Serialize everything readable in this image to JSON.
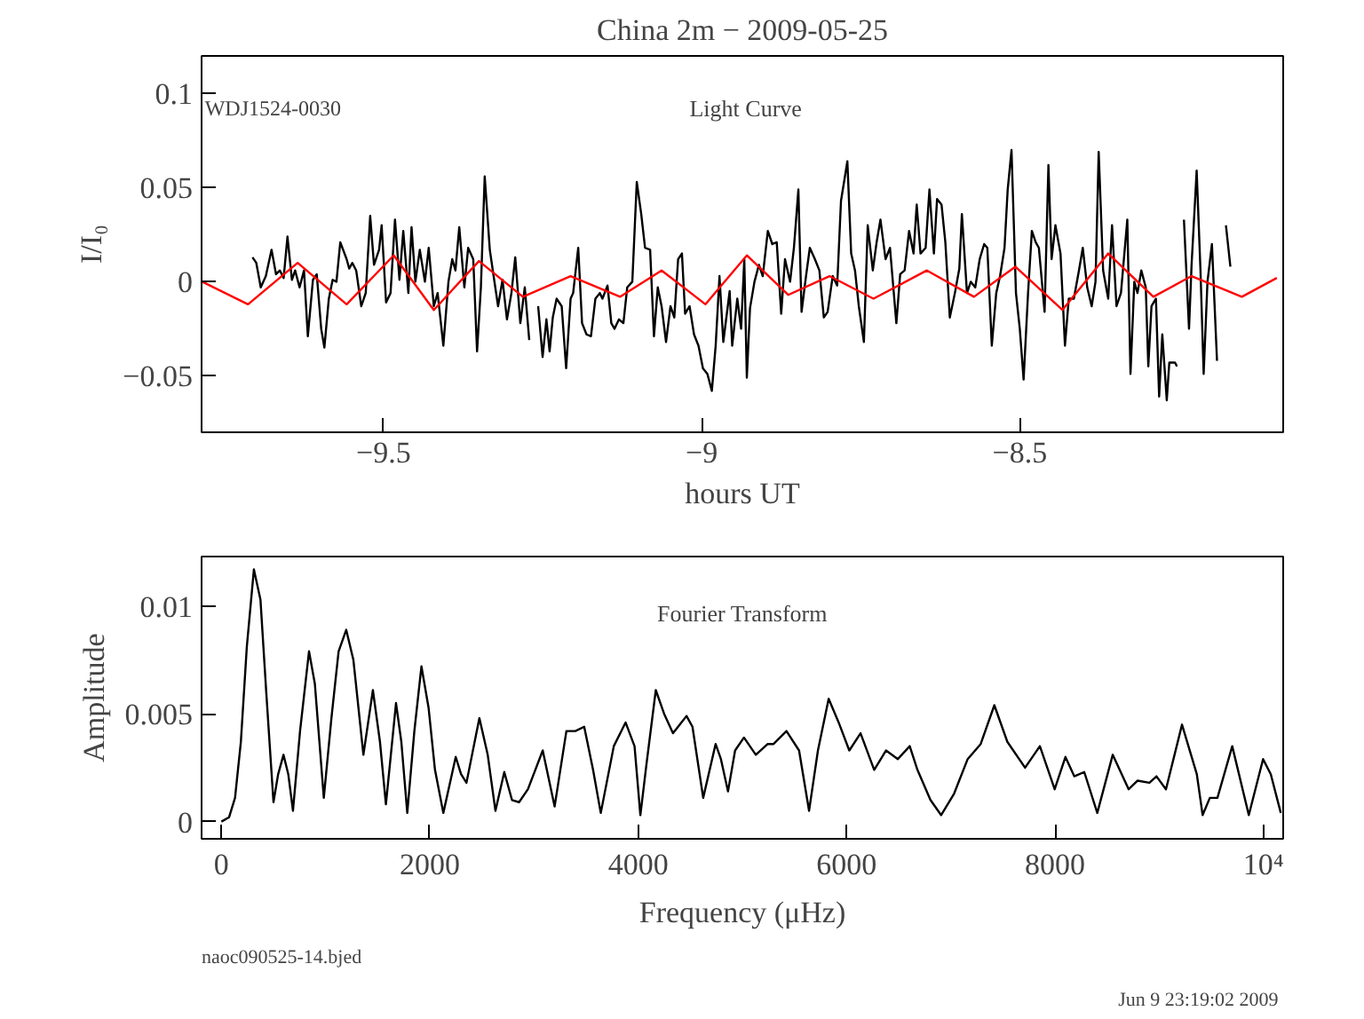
{
  "chart_data": [
    {
      "type": "line",
      "title": "China 2m − 2009-05-25",
      "xlabel": "hours UT",
      "ylabel": "I/I₀",
      "annotations": [
        "WDJ1524-0030",
        "Light Curve"
      ],
      "xlim": [
        -9.786,
        -8.086
      ],
      "ylim": [
        -0.08,
        0.12
      ],
      "xticks": [
        {
          "value": -9.5,
          "label": "−9.5"
        },
        {
          "value": -9,
          "label": "−9"
        },
        {
          "value": -8.5,
          "label": "−8.5"
        }
      ],
      "yticks": [
        {
          "value": -0.05,
          "label": "−0.05"
        },
        0,
        0.05,
        0.1
      ],
      "grid": false,
      "series": [
        {
          "color": "#000000",
          "x": [
            -9.706,
            -9.7,
            -9.693,
            -9.685,
            -9.676,
            -9.669,
            -9.663,
            -9.657,
            -9.651,
            -9.644,
            -9.639,
            -9.632,
            -9.625,
            -9.619,
            -9.611,
            -9.605,
            -9.598,
            -9.593,
            -9.586,
            -9.58,
            -9.574,
            -9.568,
            -9.558,
            -9.554,
            -9.549,
            -9.543,
            -9.535,
            -9.528,
            -9.521,
            -9.515,
            -9.507,
            -9.503,
            -9.496,
            -9.489,
            -9.482,
            -9.475,
            -9.469,
            -9.461,
            -9.456,
            -9.45,
            -9.443,
            -9.435,
            -9.429,
            -9.421,
            -9.415,
            -9.406,
            -9.398,
            -9.392,
            -9.387,
            -9.381,
            -9.373,
            -9.367,
            -9.359,
            -9.353,
            -9.347,
            -9.341,
            -9.333,
            -9.327,
            -9.32,
            -9.313,
            -9.306,
            -9.299,
            -9.293,
            -9.285,
            -9.278,
            -9.271,
            -9.264,
            -9.257,
            -9.25,
            -9.244,
            -9.239,
            -9.234,
            -9.228,
            -9.22,
            -9.213,
            -9.206,
            -9.202,
            -9.194,
            -9.188,
            -9.181,
            -9.174,
            -9.167,
            -9.16,
            -9.156,
            -9.148,
            -9.142,
            -9.137,
            -9.13,
            -9.123,
            -9.117,
            -9.109,
            -9.102,
            -9.095,
            -9.089,
            -9.081,
            -9.075,
            -9.069,
            -9.063,
            -9.056,
            -9.049,
            -9.043,
            -9.037,
            -9.031,
            -9.026,
            -9.019,
            -9.012,
            -9.005,
            -8.998,
            -8.991,
            -8.984,
            -8.978,
            -8.972,
            -8.966,
            -8.956,
            -8.952,
            -8.944,
            -8.938,
            -8.933,
            -8.929,
            -8.924,
            -8.917,
            -8.91,
            -8.904,
            -8.896,
            -8.889,
            -8.882,
            -8.875,
            -8.869,
            -8.861,
            -8.855,
            -8.848,
            -8.843,
            -8.836,
            -8.83,
            -8.822,
            -8.815,
            -8.808,
            -8.802,
            -8.794,
            -8.787,
            -8.781,
            -8.771,
            -8.765,
            -8.759,
            -8.753,
            -8.745,
            -8.739,
            -8.731,
            -8.725,
            -8.719,
            -8.711,
            -8.704,
            -8.694,
            -8.688,
            -8.681,
            -8.674,
            -8.667,
            -8.662,
            -8.656,
            -8.648,
            -8.642,
            -8.635,
            -8.63,
            -8.623,
            -8.617,
            -8.61,
            -8.602,
            -8.595,
            -8.591,
            -8.583,
            -8.577,
            -8.57,
            -8.563,
            -8.556,
            -8.551,
            -8.544,
            -8.537,
            -8.531,
            -8.524,
            -8.519,
            -8.513,
            -8.506,
            -8.5,
            -8.494,
            -8.487,
            -8.481,
            -8.475,
            -8.47,
            -8.461,
            -8.455,
            -8.45,
            -8.444,
            -8.436,
            -8.429,
            -8.423,
            -8.415,
            -8.407,
            -8.401,
            -8.394,
            -8.387,
            -8.381,
            -8.376,
            -8.369,
            -8.361,
            -8.355,
            -8.348,
            -8.341,
            -8.331,
            -8.326,
            -8.32,
            -8.315,
            -8.309,
            -8.302,
            -8.298,
            -8.293,
            -8.286,
            -8.281,
            -8.276,
            -8.269,
            -8.265,
            -8.256,
            -8.253,
            -8.248,
            -8.242,
            -8.234,
            -8.23,
            -8.222,
            -8.216,
            -8.211,
            -8.205,
            -8.198,
            -8.19,
            -8.183,
            -8.176,
            -8.169
          ],
          "values": [
            0.013,
            0.01,
            -0.003,
            0.003,
            0.017,
            0.004,
            0.006,
            0.002,
            0.024,
            0.001,
            0.006,
            -0.003,
            0.006,
            -0.029,
            0.001,
            0.004,
            -0.025,
            -0.035,
            -0.009,
            0.001,
            0.0,
            0.021,
            0.012,
            0.007,
            0.01,
            0.006,
            -0.013,
            -0.006,
            0.035,
            0.009,
            0.017,
            0.03,
            -0.011,
            -0.006,
            0.033,
            0.001,
            0.027,
            -0.006,
            0.029,
            0.0,
            0.017,
            0.0,
            0.018,
            -0.013,
            -0.006,
            -0.034,
            0.0,
            0.012,
            0.006,
            0.029,
            -0.003,
            0.018,
            0.012,
            -0.037,
            -0.003,
            0.056,
            0.017,
            0.003,
            -0.013,
            0.001,
            -0.02,
            -0.006,
            0.013,
            -0.022,
            -0.003,
            -0.031,
            null,
            -0.013,
            -0.04,
            -0.02,
            -0.037,
            -0.019,
            -0.009,
            -0.013,
            -0.046,
            -0.009,
            -0.006,
            0.018,
            -0.022,
            -0.028,
            -0.029,
            -0.009,
            -0.006,
            -0.009,
            -0.002,
            -0.022,
            -0.025,
            -0.02,
            -0.022,
            -0.003,
            0.0,
            0.053,
            0.036,
            0.018,
            0.017,
            -0.029,
            -0.003,
            -0.013,
            -0.032,
            -0.013,
            -0.019,
            0.012,
            0.015,
            -0.017,
            -0.013,
            -0.028,
            -0.034,
            -0.046,
            -0.049,
            -0.058,
            -0.034,
            0.003,
            -0.032,
            -0.005,
            -0.034,
            -0.009,
            -0.025,
            0.012,
            -0.051,
            -0.014,
            0.0,
            0.009,
            0.003,
            0.027,
            0.02,
            0.021,
            -0.017,
            0.012,
            0.0,
            0.018,
            0.049,
            -0.016,
            0.003,
            0.018,
            0.012,
            0.006,
            -0.019,
            -0.016,
            0.003,
            -0.002,
            0.043,
            0.064,
            0.015,
            0.006,
            -0.013,
            -0.032,
            0.03,
            0.006,
            0.021,
            0.033,
            0.012,
            0.018,
            -0.022,
            0.004,
            0.006,
            0.027,
            0.015,
            0.041,
            0.015,
            0.018,
            0.049,
            0.015,
            0.044,
            0.041,
            0.021,
            -0.019,
            -0.006,
            0.007,
            0.036,
            -0.006,
            0.0,
            -0.003,
            0.012,
            0.02,
            0.018,
            -0.034,
            -0.006,
            0.003,
            0.018,
            0.049,
            0.07,
            -0.006,
            -0.025,
            -0.052,
            -0.006,
            0.027,
            0.021,
            0.018,
            -0.016,
            0.062,
            0.012,
            0.03,
            0.015,
            -0.034,
            -0.009,
            -0.009,
            0.006,
            0.018,
            -0.003,
            -0.013,
            0.0,
            0.069,
            0.006,
            -0.009,
            0.03,
            -0.013,
            -0.006,
            0.033,
            -0.049,
            0.0,
            -0.006,
            0.006,
            -0.003,
            -0.045,
            -0.013,
            -0.009,
            -0.061,
            -0.028,
            -0.063,
            -0.043,
            -0.043,
            -0.045,
            null,
            0.033,
            -0.025,
            0.009,
            0.059,
            0.006,
            -0.049,
            0.0,
            0.02,
            -0.042,
            null,
            0.03,
            0.008
          ]
        },
        {
          "color": "#ff0000",
          "x": [
            -9.785,
            -9.713,
            -9.635,
            -9.558,
            -9.484,
            -9.421,
            -9.35,
            -9.281,
            -9.206,
            -9.128,
            -9.063,
            -8.994,
            -8.929,
            -8.864,
            -8.799,
            -8.73,
            -8.646,
            -8.572,
            -8.507,
            -8.433,
            -8.361,
            -8.29,
            -8.23,
            -8.151,
            -8.096
          ],
          "values": [
            0.0,
            -0.012,
            0.01,
            -0.012,
            0.014,
            -0.015,
            0.011,
            -0.008,
            0.003,
            -0.008,
            0.006,
            -0.012,
            0.014,
            -0.007,
            0.003,
            -0.009,
            0.006,
            -0.008,
            0.008,
            -0.015,
            0.015,
            -0.008,
            0.003,
            -0.008,
            0.002
          ]
        }
      ]
    },
    {
      "type": "line",
      "xlabel": "Frequency (μHz)",
      "ylabel": "Amplitude",
      "annotations": [
        "Fourier Transform",
        "naoc090525-14.bjed",
        "Jun  9 23:19:02 2009"
      ],
      "xlim": [
        -190,
        10190
      ],
      "ylim": [
        -0.0008,
        0.0123
      ],
      "xticks": [
        0,
        2000,
        4000,
        6000,
        8000,
        {
          "value": 10000,
          "label": "10⁴"
        }
      ],
      "yticks": [
        0,
        0.005,
        0.01
      ],
      "grid": false,
      "series": [
        {
          "color": "#000000",
          "x": [
            0,
            74,
            131,
            187,
            244,
            312,
            375,
            432,
            500,
            545,
            596,
            642,
            687,
            755,
            841,
            897,
            983,
            1056,
            1125,
            1198,
            1267,
            1363,
            1454,
            1522,
            1579,
            1676,
            1727,
            1784,
            1852,
            1920,
            1988,
            2050,
            2130,
            2249,
            2300,
            2352,
            2476,
            2556,
            2630,
            2715,
            2789,
            2857,
            2942,
            3084,
            3198,
            3311,
            3397,
            3482,
            3567,
            3641,
            3766,
            3879,
            3965,
            4021,
            4078,
            4169,
            4249,
            4334,
            4464,
            4521,
            4624,
            4743,
            4794,
            4862,
            4930,
            5015,
            5129,
            5243,
            5299,
            5423,
            5544,
            5640,
            5725,
            5828,
            5924,
            6026,
            6134,
            6265,
            6379,
            6492,
            6606,
            6680,
            6805,
            6907,
            7032,
            7162,
            7287,
            7418,
            7543,
            7713,
            7855,
            7997,
            8100,
            8185,
            8281,
            8406,
            8554,
            8707,
            8793,
            8906,
            8974,
            9065,
            9219,
            9361,
            9417,
            9486,
            9559,
            9701,
            9860,
            9997,
            10071,
            10167
          ],
          "values": [
            0,
            0.0002,
            0.0011,
            0.0037,
            0.0081,
            0.0117,
            0.0103,
            0.0059,
            0.0009,
            0.0022,
            0.0031,
            0.0022,
            0.0005,
            0.0042,
            0.0079,
            0.0064,
            0.0011,
            0.0048,
            0.0079,
            0.0089,
            0.0075,
            0.0031,
            0.0061,
            0.0037,
            0.0008,
            0.0055,
            0.0037,
            0.0004,
            0.0042,
            0.0072,
            0.0053,
            0.0024,
            0.0004,
            0.003,
            0.0022,
            0.0018,
            0.0048,
            0.0031,
            0.0005,
            0.0023,
            0.001,
            0.0009,
            0.0015,
            0.0033,
            0.0007,
            0.0042,
            0.0042,
            0.0044,
            0.0024,
            0.0004,
            0.0035,
            0.0046,
            0.0035,
            0.0003,
            0.0026,
            0.0061,
            0.005,
            0.0041,
            0.0049,
            0.0044,
            0.0011,
            0.0036,
            0.0029,
            0.0014,
            0.0033,
            0.0039,
            0.0031,
            0.0036,
            0.0036,
            0.0042,
            0.0033,
            0.0005,
            0.0033,
            0.0057,
            0.0046,
            0.0033,
            0.0041,
            0.0024,
            0.0033,
            0.0029,
            0.0035,
            0.0024,
            0.001,
            0.0003,
            0.0013,
            0.0029,
            0.0036,
            0.0054,
            0.0037,
            0.0025,
            0.0035,
            0.0015,
            0.003,
            0.0021,
            0.0023,
            0.0004,
            0.0031,
            0.0015,
            0.0019,
            0.0018,
            0.0021,
            0.0015,
            0.0045,
            0.0022,
            0.0003,
            0.0011,
            0.0011,
            0.0035,
            0.0003,
            0.0029,
            0.0022,
            0.0004
          ]
        }
      ]
    }
  ]
}
